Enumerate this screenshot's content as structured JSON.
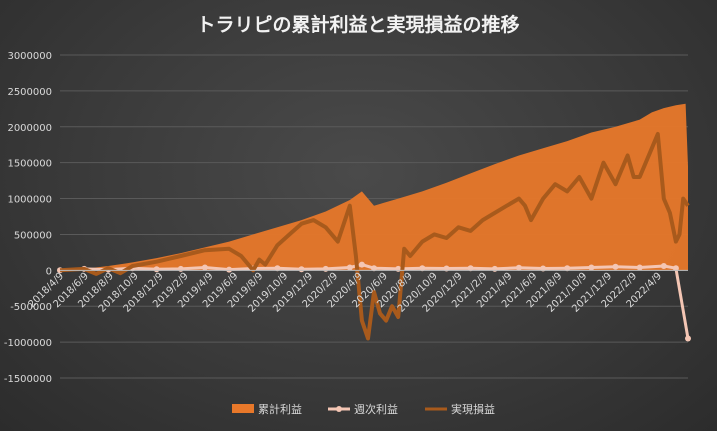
{
  "chart_data": {
    "type": "area",
    "title": "トラリピの累計利益と実現損益の推移",
    "xlabel": "",
    "ylabel": "",
    "ylim": [
      -1500000,
      3000000
    ],
    "y_ticks": [
      3000000,
      2500000,
      2000000,
      1500000,
      1000000,
      500000,
      0,
      -500000,
      -1000000,
      -1500000
    ],
    "x_tick_labels": [
      "2018/4/9",
      "2018/6/9",
      "2018/8/9",
      "2018/10/9",
      "2018/12/9",
      "2019/2/9",
      "2019/4/9",
      "2019/6/9",
      "2019/8/9",
      "2019/10/9",
      "2019/12/9",
      "2020/2/9",
      "2020/4/9",
      "2020/6/9",
      "2020/8/9",
      "2020/10/9",
      "2020/12/9",
      "2021/2/9",
      "2021/4/9",
      "2021/6/9",
      "2021/8/9",
      "2021/10/9",
      "2021/12/9",
      "2022/2/9",
      "2022/4/9"
    ],
    "grid": true,
    "legend_position": "bottom",
    "x_range": [
      0,
      52
    ],
    "series": [
      {
        "name": "累計利益",
        "kind": "area",
        "color": "#e8782a",
        "x": [
          0,
          2,
          4,
          6,
          8,
          10,
          12,
          14,
          16,
          18,
          20,
          22,
          24,
          25,
          26,
          28,
          30,
          32,
          34,
          36,
          38,
          40,
          42,
          44,
          46,
          48,
          49,
          50,
          51,
          51.8,
          52
        ],
        "values": [
          0,
          20000,
          60000,
          110000,
          170000,
          240000,
          320000,
          400000,
          500000,
          600000,
          700000,
          820000,
          980000,
          1100000,
          900000,
          1000000,
          1100000,
          1220000,
          1350000,
          1480000,
          1600000,
          1700000,
          1800000,
          1920000,
          2000000,
          2100000,
          2200000,
          2260000,
          2300000,
          2320000,
          1450000
        ]
      },
      {
        "name": "週次利益",
        "kind": "line",
        "color": "#f4c6b4",
        "x": [
          0,
          2,
          4,
          6,
          8,
          10,
          12,
          14,
          16,
          18,
          20,
          22,
          24,
          25,
          26,
          28,
          30,
          32,
          34,
          36,
          38,
          40,
          42,
          44,
          46,
          48,
          50,
          51,
          52
        ],
        "values": [
          0,
          20000,
          10000,
          30000,
          15000,
          20000,
          40000,
          10000,
          25000,
          30000,
          15000,
          20000,
          40000,
          80000,
          30000,
          20000,
          30000,
          25000,
          30000,
          20000,
          35000,
          25000,
          30000,
          40000,
          50000,
          40000,
          60000,
          30000,
          -950000
        ]
      },
      {
        "name": "実現損益",
        "kind": "line",
        "color": "#a85a1c",
        "x": [
          0,
          2,
          3,
          4,
          5,
          6,
          8,
          10,
          12,
          14,
          15,
          16,
          16.5,
          17,
          18,
          19,
          20,
          21,
          22,
          23,
          24,
          24.5,
          25,
          25.5,
          26,
          26.5,
          27,
          27.5,
          28,
          28.5,
          29,
          30,
          31,
          32,
          33,
          34,
          35,
          36,
          37,
          38,
          38.5,
          39,
          40,
          41,
          42,
          43,
          44,
          45,
          46,
          47,
          47.5,
          48,
          49,
          49.5,
          50,
          50.5,
          51,
          51.3,
          51.6,
          52
        ],
        "values": [
          0,
          20000,
          -50000,
          30000,
          -40000,
          60000,
          120000,
          200000,
          280000,
          300000,
          200000,
          0,
          150000,
          80000,
          350000,
          500000,
          650000,
          700000,
          600000,
          400000,
          900000,
          200000,
          -700000,
          -950000,
          -300000,
          -600000,
          -700000,
          -500000,
          -650000,
          300000,
          200000,
          400000,
          500000,
          450000,
          600000,
          550000,
          700000,
          800000,
          900000,
          1000000,
          900000,
          700000,
          1000000,
          1200000,
          1100000,
          1300000,
          1000000,
          1500000,
          1200000,
          1600000,
          1300000,
          1300000,
          1700000,
          1900000,
          1000000,
          800000,
          400000,
          500000,
          1000000,
          900000
        ]
      }
    ]
  }
}
